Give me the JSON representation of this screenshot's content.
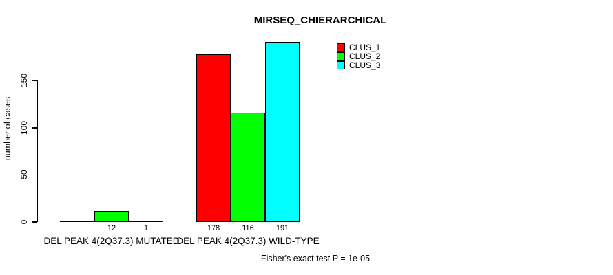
{
  "chart_data": {
    "type": "bar",
    "title": "MIRSEQ_CHIERARCHICAL",
    "ylabel": "number of cases",
    "xlabel": "",
    "ylim": [
      0,
      200
    ],
    "yticks": [
      0,
      50,
      100,
      150
    ],
    "grid": false,
    "legend_position": "top-right",
    "categories": [
      "DEL PEAK 4(2Q37.3) MUTATED",
      "DEL PEAK 4(2Q37.3) WILD-TYPE"
    ],
    "series": [
      {
        "name": "CLUS_1",
        "color": "#ff0000",
        "values": [
          0,
          178
        ]
      },
      {
        "name": "CLUS_2",
        "color": "#00ff00",
        "values": [
          12,
          116
        ]
      },
      {
        "name": "CLUS_3",
        "color": "#00ffff",
        "values": [
          1,
          191
        ]
      }
    ],
    "bar_value_labels": [
      [
        "",
        "12",
        "1"
      ],
      [
        "178",
        "116",
        "191"
      ]
    ],
    "annotation": "Fisher's exact test P = 1e-05"
  },
  "colors": {
    "axis": "#000000",
    "text": "#000000",
    "background": "#ffffff"
  }
}
